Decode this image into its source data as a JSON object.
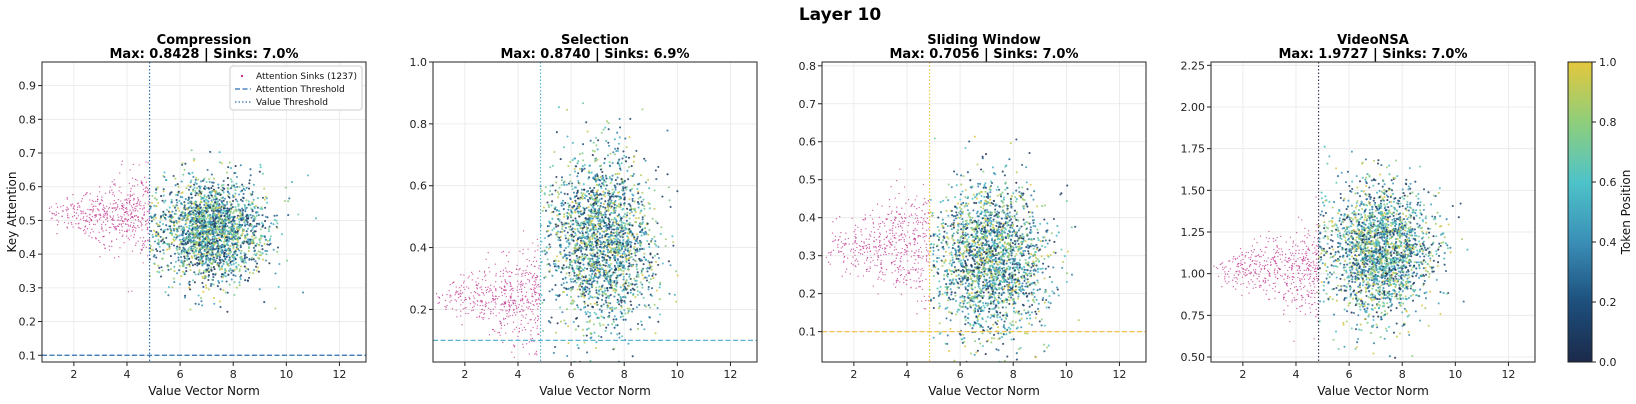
{
  "figure": {
    "suptitle": "Layer 10",
    "xlabel": "Value Vector Norm",
    "ylabel": "Key Attention",
    "colorbar": {
      "label": "Token Position",
      "ticks": [
        "0.0",
        "0.2",
        "0.4",
        "0.6",
        "0.8",
        "1.0"
      ],
      "colors": [
        "#1b2a4a",
        "#1d4f7d",
        "#3a8fb7",
        "#4ec3c9",
        "#8fce7b",
        "#e3c73d"
      ]
    },
    "legend": {
      "sinks": "Attention Sinks (1237)",
      "attn_threshold": "Attention Threshold",
      "value_threshold": "Value Threshold"
    }
  },
  "chart_data": [
    {
      "type": "scatter",
      "title": "Compression",
      "subtitle": "Max: 0.8428 | Sinks: 7.0%",
      "xlabel": "Value Vector Norm",
      "ylabel": "Key Attention",
      "xlim": [
        0.8,
        13
      ],
      "ylim": [
        0.08,
        0.97
      ],
      "xticks": [
        2,
        4,
        6,
        8,
        10,
        12
      ],
      "yticks": [
        0.1,
        0.2,
        0.3,
        0.4,
        0.5,
        0.6,
        0.7,
        0.8,
        0.9
      ],
      "value_threshold": 4.85,
      "attention_threshold": 0.1,
      "threshold_color": "#2c6fb0",
      "sinks": {
        "x_range": [
          0.9,
          4.85
        ],
        "y_center": 0.52,
        "y_spread": 0.045
      },
      "bulk": {
        "x_center": 7.2,
        "x_spread": 1.0,
        "y_center": 0.47,
        "y_spread": 0.075
      },
      "legend_position": "upper right",
      "grid": true
    },
    {
      "type": "scatter",
      "title": "Selection",
      "subtitle": "Max: 0.8740 | Sinks: 6.9%",
      "xlabel": "Value Vector Norm",
      "xlim": [
        0.8,
        13
      ],
      "ylim": [
        0.03,
        1.0
      ],
      "xticks": [
        2,
        4,
        6,
        8,
        10,
        12
      ],
      "yticks": [
        0.2,
        0.4,
        0.6,
        0.8,
        1.0
      ],
      "value_threshold": 4.85,
      "attention_threshold": 0.1,
      "threshold_color": "#5ab4d6",
      "sinks": {
        "x_range": [
          0.9,
          4.85
        ],
        "y_center": 0.24,
        "y_spread": 0.06
      },
      "bulk": {
        "x_center": 7.2,
        "x_spread": 1.0,
        "y_center": 0.42,
        "y_spread": 0.14
      },
      "grid": true
    },
    {
      "type": "scatter",
      "title": "Sliding Window",
      "subtitle": "Max: 0.7056 | Sinks: 7.0%",
      "xlabel": "Value Vector Norm",
      "xlim": [
        0.8,
        13
      ],
      "ylim": [
        0.02,
        0.81
      ],
      "xticks": [
        2,
        4,
        6,
        8,
        10,
        12
      ],
      "yticks": [
        0.1,
        0.2,
        0.3,
        0.4,
        0.5,
        0.6,
        0.7,
        0.8
      ],
      "value_threshold": 4.85,
      "attention_threshold": 0.1,
      "threshold_color": "#f0c24a",
      "sinks": {
        "x_range": [
          0.9,
          4.85
        ],
        "y_center": 0.33,
        "y_spread": 0.055
      },
      "bulk": {
        "x_center": 7.2,
        "x_spread": 1.0,
        "y_center": 0.29,
        "y_spread": 0.1
      },
      "grid": true
    },
    {
      "type": "scatter",
      "title": "VideoNSA",
      "subtitle": "Max: 1.9727 | Sinks: 7.0%",
      "xlabel": "Value Vector Norm",
      "xlim": [
        0.8,
        13
      ],
      "ylim": [
        0.47,
        2.27
      ],
      "xticks": [
        2,
        4,
        6,
        8,
        10,
        12
      ],
      "yticks": [
        0.5,
        0.75,
        1.0,
        1.25,
        1.5,
        1.75,
        2.0,
        2.25
      ],
      "value_threshold": 4.85,
      "threshold_color": "#3b3b5c",
      "sinks": {
        "x_range": [
          0.9,
          4.85
        ],
        "y_center": 1.03,
        "y_spread": 0.1
      },
      "bulk": {
        "x_center": 7.2,
        "x_spread": 1.0,
        "y_center": 1.13,
        "y_spread": 0.2
      },
      "grid": true
    }
  ]
}
